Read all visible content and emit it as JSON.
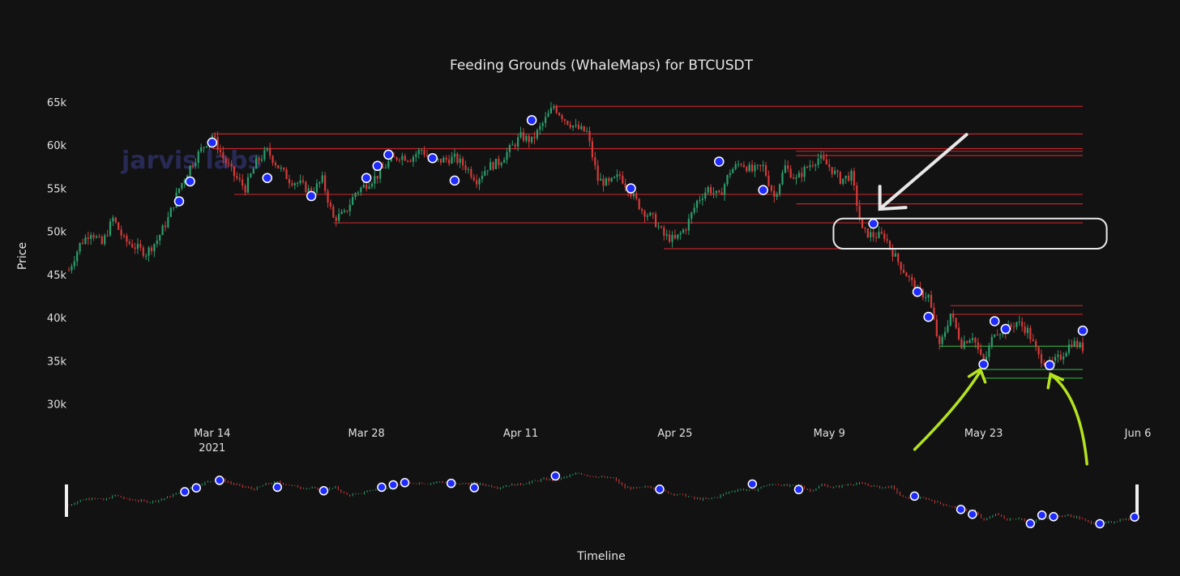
{
  "chart_data": {
    "type": "candlestick",
    "title": "Feeding Grounds (WhaleMaps) for BTCUSDT",
    "ylabel": "Price",
    "xlabel": "Timeline",
    "watermark": "jarvis labs",
    "ylim": [
      28000,
      66500
    ],
    "yticks": [
      {
        "label": "30k",
        "value": 30000
      },
      {
        "label": "35k",
        "value": 35000
      },
      {
        "label": "40k",
        "value": 40000
      },
      {
        "label": "45k",
        "value": 45000
      },
      {
        "label": "50k",
        "value": 50000
      },
      {
        "label": "55k",
        "value": 55000
      },
      {
        "label": "60k",
        "value": 60000
      },
      {
        "label": "65k",
        "value": 65000
      }
    ],
    "xlim": [
      "2021-03-01",
      "2021-06-01"
    ],
    "xticks": [
      {
        "label": "Mar 14",
        "sub": "2021",
        "date": "2021-03-14"
      },
      {
        "label": "Mar 28",
        "sub": "",
        "date": "2021-03-28"
      },
      {
        "label": "Apr 11",
        "sub": "",
        "date": "2021-04-11"
      },
      {
        "label": "Apr 25",
        "sub": "",
        "date": "2021-04-25"
      },
      {
        "label": "May 9",
        "sub": "",
        "date": "2021-05-09"
      },
      {
        "label": "May 23",
        "sub": "",
        "date": "2021-05-23"
      },
      {
        "label": "Jun 6",
        "sub": "",
        "date": "2021-06-06"
      }
    ],
    "price_path": [
      [
        "2021-03-01",
        45500
      ],
      [
        "2021-03-02",
        48500
      ],
      [
        "2021-03-03",
        50000
      ],
      [
        "2021-03-04",
        48500
      ],
      [
        "2021-03-05",
        51500
      ],
      [
        "2021-03-06",
        49000
      ],
      [
        "2021-03-08",
        47500
      ],
      [
        "2021-03-09",
        49000
      ],
      [
        "2021-03-10",
        51500
      ],
      [
        "2021-03-11",
        55000
      ],
      [
        "2021-03-12",
        57500
      ],
      [
        "2021-03-13",
        59500
      ],
      [
        "2021-03-14",
        61200
      ],
      [
        "2021-03-15",
        58500
      ],
      [
        "2021-03-16",
        56500
      ],
      [
        "2021-03-17",
        55000
      ],
      [
        "2021-03-18",
        58000
      ],
      [
        "2021-03-19",
        59300
      ],
      [
        "2021-03-20",
        57500
      ],
      [
        "2021-03-21",
        56000
      ],
      [
        "2021-03-22",
        55500
      ],
      [
        "2021-03-23",
        54500
      ],
      [
        "2021-03-24",
        56000
      ],
      [
        "2021-03-25",
        51500
      ],
      [
        "2021-03-26",
        52000
      ],
      [
        "2021-03-27",
        54500
      ],
      [
        "2021-03-28",
        55500
      ],
      [
        "2021-03-29",
        56500
      ],
      [
        "2021-03-30",
        58000
      ],
      [
        "2021-03-31",
        58800
      ],
      [
        "2021-04-01",
        58500
      ],
      [
        "2021-04-02",
        59500
      ],
      [
        "2021-04-03",
        58000
      ],
      [
        "2021-04-04",
        58300
      ],
      [
        "2021-04-05",
        58500
      ],
      [
        "2021-04-06",
        57500
      ],
      [
        "2021-04-07",
        56000
      ],
      [
        "2021-04-08",
        57500
      ],
      [
        "2021-04-09",
        58000
      ],
      [
        "2021-04-10",
        59500
      ],
      [
        "2021-04-11",
        61000
      ],
      [
        "2021-04-12",
        60500
      ],
      [
        "2021-04-13",
        62500
      ],
      [
        "2021-04-14",
        64500
      ],
      [
        "2021-04-15",
        63000
      ],
      [
        "2021-04-16",
        62000
      ],
      [
        "2021-04-17",
        61500
      ],
      [
        "2021-04-18",
        56000
      ],
      [
        "2021-04-19",
        55500
      ],
      [
        "2021-04-20",
        56500
      ],
      [
        "2021-04-21",
        54500
      ],
      [
        "2021-04-22",
        52500
      ],
      [
        "2021-04-23",
        51500
      ],
      [
        "2021-04-24",
        49500
      ],
      [
        "2021-04-25",
        49000
      ],
      [
        "2021-04-26",
        50500
      ],
      [
        "2021-04-27",
        53500
      ],
      [
        "2021-04-28",
        55000
      ],
      [
        "2021-04-29",
        54000
      ],
      [
        "2021-04-30",
        57000
      ],
      [
        "2021-05-01",
        58000
      ],
      [
        "2021-05-02",
        57000
      ],
      [
        "2021-05-03",
        57500
      ],
      [
        "2021-05-04",
        54000
      ],
      [
        "2021-05-05",
        57500
      ],
      [
        "2021-05-06",
        56000
      ],
      [
        "2021-05-07",
        57500
      ],
      [
        "2021-05-08",
        58500
      ],
      [
        "2021-05-09",
        57500
      ],
      [
        "2021-05-10",
        56000
      ],
      [
        "2021-05-11",
        56500
      ],
      [
        "2021-05-12",
        50000
      ],
      [
        "2021-05-13",
        49500
      ],
      [
        "2021-05-14",
        49500
      ],
      [
        "2021-05-15",
        47000
      ],
      [
        "2021-05-16",
        45000
      ],
      [
        "2021-05-17",
        43000
      ],
      [
        "2021-05-18",
        42500
      ],
      [
        "2021-05-19",
        36500
      ],
      [
        "2021-05-20",
        40500
      ],
      [
        "2021-05-21",
        37000
      ],
      [
        "2021-05-22",
        38000
      ],
      [
        "2021-05-23",
        34500
      ],
      [
        "2021-05-24",
        38500
      ],
      [
        "2021-05-25",
        38500
      ],
      [
        "2021-05-26",
        39500
      ],
      [
        "2021-05-27",
        38500
      ],
      [
        "2021-05-28",
        35500
      ],
      [
        "2021-05-29",
        34500
      ],
      [
        "2021-05-30",
        35500
      ],
      [
        "2021-05-31",
        37200
      ],
      [
        "2021-06-01",
        36500
      ]
    ],
    "whale_points": [
      [
        "2021-03-11",
        53500
      ],
      [
        "2021-03-12",
        55800
      ],
      [
        "2021-03-14",
        60300
      ],
      [
        "2021-03-19",
        56200
      ],
      [
        "2021-03-23",
        54100
      ],
      [
        "2021-03-28",
        56200
      ],
      [
        "2021-03-29",
        57600
      ],
      [
        "2021-03-30",
        58900
      ],
      [
        "2021-04-03",
        58500
      ],
      [
        "2021-04-05",
        55900
      ],
      [
        "2021-04-12",
        62900
      ],
      [
        "2021-04-21",
        55000
      ],
      [
        "2021-04-29",
        58100
      ],
      [
        "2021-05-03",
        54800
      ],
      [
        "2021-05-13",
        50900
      ],
      [
        "2021-05-17",
        43000
      ],
      [
        "2021-05-18",
        40100
      ],
      [
        "2021-05-23",
        34600
      ],
      [
        "2021-05-24",
        39600
      ],
      [
        "2021-05-25",
        38700
      ],
      [
        "2021-05-29",
        34500
      ],
      [
        "2021-06-01",
        38500
      ]
    ],
    "resistance_levels": [
      {
        "price": 64500,
        "from": "2021-04-14"
      },
      {
        "price": 61300,
        "from": "2021-03-14"
      },
      {
        "price": 59600,
        "from": "2021-03-14"
      },
      {
        "price": 59300,
        "from": "2021-05-06"
      },
      {
        "price": 58800,
        "from": "2021-05-06"
      },
      {
        "price": 54300,
        "from": "2021-03-16"
      },
      {
        "price": 53200,
        "from": "2021-05-06"
      },
      {
        "price": 51000,
        "from": "2021-03-25"
      },
      {
        "price": 48000,
        "from": "2021-04-24"
      },
      {
        "price": 41400,
        "from": "2021-05-20"
      },
      {
        "price": 40400,
        "from": "2021-05-20"
      }
    ],
    "support_levels": [
      {
        "price": 36700,
        "from": "2021-05-19"
      },
      {
        "price": 34000,
        "from": "2021-05-23"
      },
      {
        "price": 33000,
        "from": "2021-05-23"
      }
    ],
    "annotations": {
      "highlight_box": {
        "y_from": 48000,
        "y_to": 51500,
        "x_from": "2021-05-11",
        "x_to": "2021-06-02"
      },
      "white_arrow": "pointing to May 13 whale point near 50.9k",
      "green_arrows": [
        "May 23 low",
        "May 29 low"
      ]
    },
    "colors": {
      "background": "#121212",
      "up": "#2a9d6c",
      "down": "#d63a3a",
      "resistance": "#c0242a",
      "support": "#2f9a3a",
      "whale": "#1f2bff",
      "annotation_green": "#b4e31e",
      "annotation_white": "#e8e8e8"
    }
  }
}
